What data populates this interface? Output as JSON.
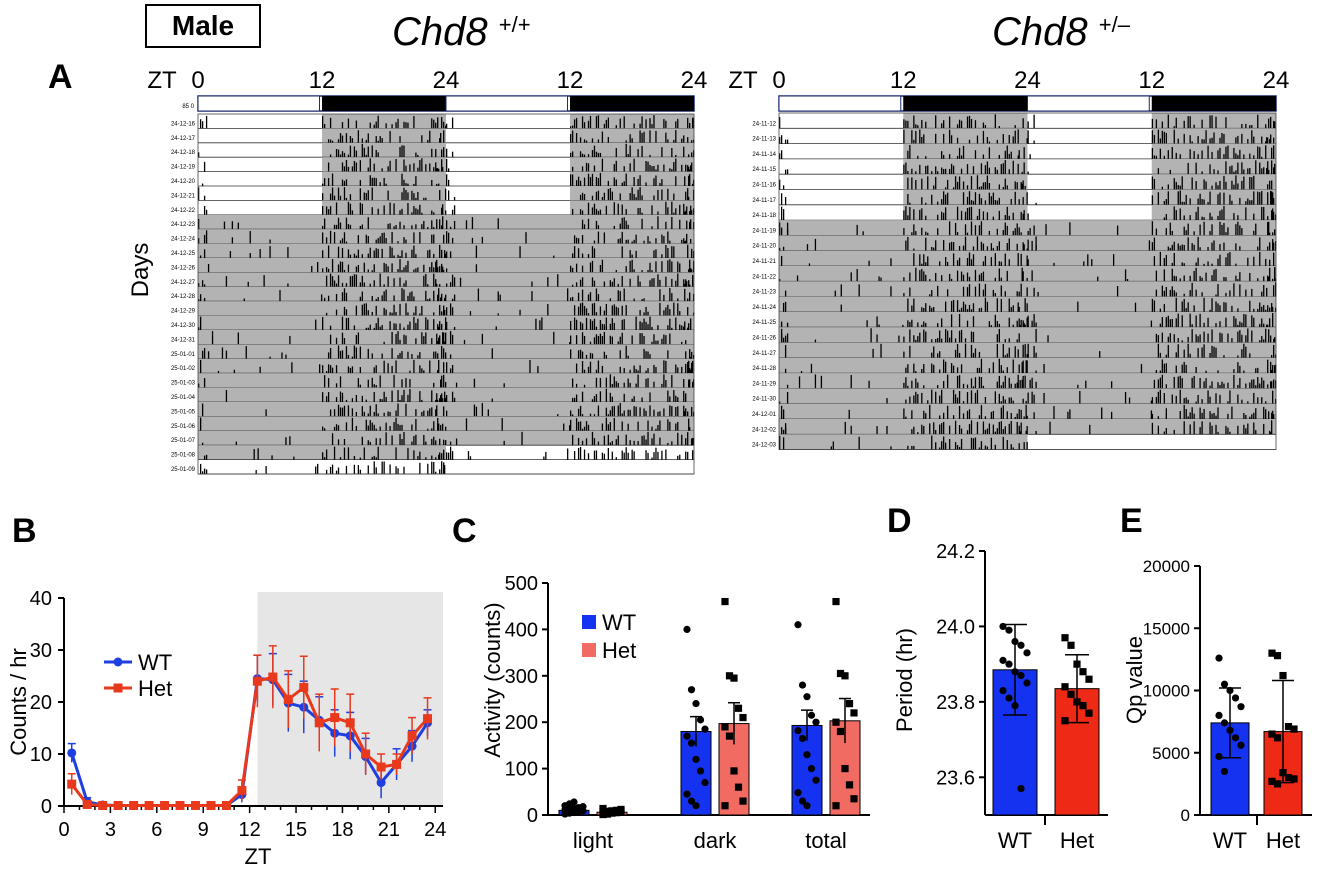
{
  "header": {
    "sex_label": "Male",
    "wt_genotype": {
      "gene": "Chd8",
      "sup": "+/+"
    },
    "het_genotype": {
      "gene": "Chd8",
      "sup": "+/–"
    }
  },
  "panels": {
    "a": "A",
    "b": "B",
    "c": "C",
    "d": "D",
    "e": "E"
  },
  "actogram": {
    "zt_label": "ZT",
    "zt_ticks": [
      "0",
      "12",
      "24",
      "12",
      "24"
    ],
    "days_label": "Days",
    "wt_header_label": "85 0",
    "wt_days": [
      "24-12-16",
      "24-12-17",
      "24-12-18",
      "24-12-19",
      "24-12-20",
      "24-12-21",
      "24-12-22",
      "24-12-23",
      "24-12-24",
      "24-12-25",
      "24-12-26",
      "24-12-27",
      "24-12-28",
      "24-12-29",
      "24-12-30",
      "24-12-31",
      "25-01-01",
      "25-01-02",
      "25-01-03",
      "25-01-04",
      "25-01-05",
      "25-01-06",
      "25-01-07",
      "25-01-08",
      "25-01-09"
    ],
    "het_days": [
      "24-11-12",
      "24-11-13",
      "24-11-14",
      "24-11-15",
      "24-11-16",
      "24-11-17",
      "24-11-18",
      "24-11-19",
      "24-11-20",
      "24-11-21",
      "24-11-22",
      "24-11-23",
      "24-11-24",
      "24-11-25",
      "24-11-26",
      "24-11-27",
      "24-11-28",
      "24-11-29",
      "24-11-30",
      "24-12-01",
      "24-12-02",
      "24-12-03"
    ]
  },
  "colors": {
    "wt": "#1f3fe0",
    "het": "#e8391d",
    "wt_bar": "#1432f0",
    "het_bar_c": "#f26b63",
    "het_bar_de": "#ee2a16",
    "gray": "#b3b3b3",
    "shade": "#e6e6e6"
  },
  "chart_data": [
    {
      "type": "line",
      "panel": "B",
      "xlabel": "ZT",
      "ylabel": "Counts / hr",
      "xlim": [
        0,
        24.5
      ],
      "ylim": [
        0,
        40
      ],
      "x_ticks": [
        0,
        3,
        6,
        9,
        12,
        15,
        18,
        21,
        24
      ],
      "y_ticks": [
        0,
        10,
        20,
        30,
        40
      ],
      "dark_phase": [
        12.5,
        24.5
      ],
      "legend_position": "left",
      "x": [
        0.5,
        1.5,
        2.5,
        3.5,
        4.5,
        5.5,
        6.5,
        7.5,
        8.5,
        9.5,
        10.5,
        11.5,
        12.5,
        13.5,
        14.5,
        15.5,
        16.5,
        17.5,
        18.5,
        19.5,
        20.5,
        21.5,
        22.5,
        23.5
      ],
      "series": [
        {
          "name": "WT",
          "values": [
            10.2,
            0.8,
            0.2,
            0.1,
            0.1,
            0.1,
            0.1,
            0.1,
            0.1,
            0.1,
            0.1,
            2.2,
            24.5,
            24.3,
            19.8,
            19.0,
            16.5,
            14.0,
            13.5,
            9.5,
            4.5,
            8.0,
            11.5,
            16.0
          ],
          "err": [
            1.8,
            0.8,
            0.4,
            0.2,
            0.2,
            0.2,
            0.2,
            0.2,
            0.2,
            0.2,
            0.2,
            1.5,
            4.5,
            5.0,
            5.5,
            5.0,
            4.5,
            4.5,
            4.5,
            3.5,
            3.0,
            3.0,
            3.0,
            2.5
          ]
        },
        {
          "name": "Het",
          "values": [
            4.2,
            0.3,
            0.1,
            0.1,
            0.1,
            0.1,
            0.1,
            0.1,
            0.1,
            0.1,
            0.1,
            3.0,
            24.0,
            24.8,
            20.5,
            22.8,
            16.0,
            17.0,
            16.0,
            10.0,
            7.5,
            8.0,
            13.5,
            16.8
          ],
          "err": [
            2.0,
            0.5,
            0.3,
            0.2,
            0.2,
            0.2,
            0.2,
            0.2,
            0.2,
            0.2,
            0.2,
            2.0,
            5.0,
            6.0,
            5.5,
            6.0,
            5.5,
            5.5,
            5.5,
            4.0,
            2.5,
            2.0,
            3.5,
            4.0
          ]
        }
      ]
    },
    {
      "type": "bar",
      "panel": "C",
      "ylabel": "Activity (counts)",
      "ylim": [
        0,
        500
      ],
      "y_ticks": [
        0,
        100,
        200,
        300,
        400,
        500
      ],
      "categories": [
        "light",
        "dark",
        "total"
      ],
      "legend_position": "top-left",
      "series": [
        {
          "name": "WT",
          "values": [
            10,
            180,
            193
          ],
          "err": [
            4,
            32,
            33
          ],
          "points": [
            [
              2,
              4,
              6,
              8,
              9,
              11,
              12,
              14,
              16,
              18,
              20,
              24,
              28
            ],
            [
              400,
              270,
              240,
              205,
              185,
              170,
              155,
              120,
              95,
              70,
              45,
              30,
              20
            ],
            [
              410,
              280,
              255,
              215,
              200,
              182,
              165,
              130,
              100,
              75,
              48,
              30,
              20
            ]
          ]
        },
        {
          "name": "Het",
          "values": [
            6,
            197,
            203
          ],
          "err": [
            3,
            45,
            48
          ],
          "points": [
            [
              1,
              2,
              4,
              5,
              6,
              7,
              8,
              9,
              10,
              12,
              14
            ],
            [
              460,
              300,
              295,
              230,
              210,
              190,
              170,
              95,
              60,
              30,
              20
            ],
            [
              460,
              305,
              300,
              240,
              220,
              200,
              180,
              100,
              65,
              35,
              20
            ]
          ]
        }
      ]
    },
    {
      "type": "bar",
      "panel": "D",
      "ylabel": "Period (hr)",
      "ylim": [
        23.5,
        24.2
      ],
      "y_ticks": [
        23.6,
        23.8,
        24.0,
        24.2
      ],
      "categories": [
        "WT",
        "Het"
      ],
      "values": [
        23.885,
        23.835
      ],
      "err": [
        0.12,
        0.09
      ],
      "points": [
        [
          24.0,
          23.99,
          23.96,
          23.95,
          23.93,
          23.91,
          23.9,
          23.88,
          23.87,
          23.85,
          23.83,
          23.81,
          23.79,
          23.57
        ],
        [
          23.97,
          23.95,
          23.9,
          23.88,
          23.86,
          23.84,
          23.82,
          23.8,
          23.79,
          23.77,
          23.75
        ]
      ]
    },
    {
      "type": "bar",
      "panel": "E",
      "ylabel": "Qp value",
      "ylim": [
        0,
        20000
      ],
      "y_ticks": [
        0,
        5000,
        10000,
        15000,
        20000
      ],
      "categories": [
        "WT",
        "Het"
      ],
      "values": [
        7400,
        6700
      ],
      "err": [
        2800,
        4100
      ],
      "points": [
        [
          12600,
          10500,
          10000,
          9400,
          8700,
          8000,
          7400,
          6800,
          6200,
          5600,
          4700,
          3500
        ],
        [
          13000,
          12800,
          11200,
          7100,
          6900,
          6500,
          6200,
          3400,
          3000,
          2900,
          2700,
          2500
        ]
      ]
    }
  ]
}
